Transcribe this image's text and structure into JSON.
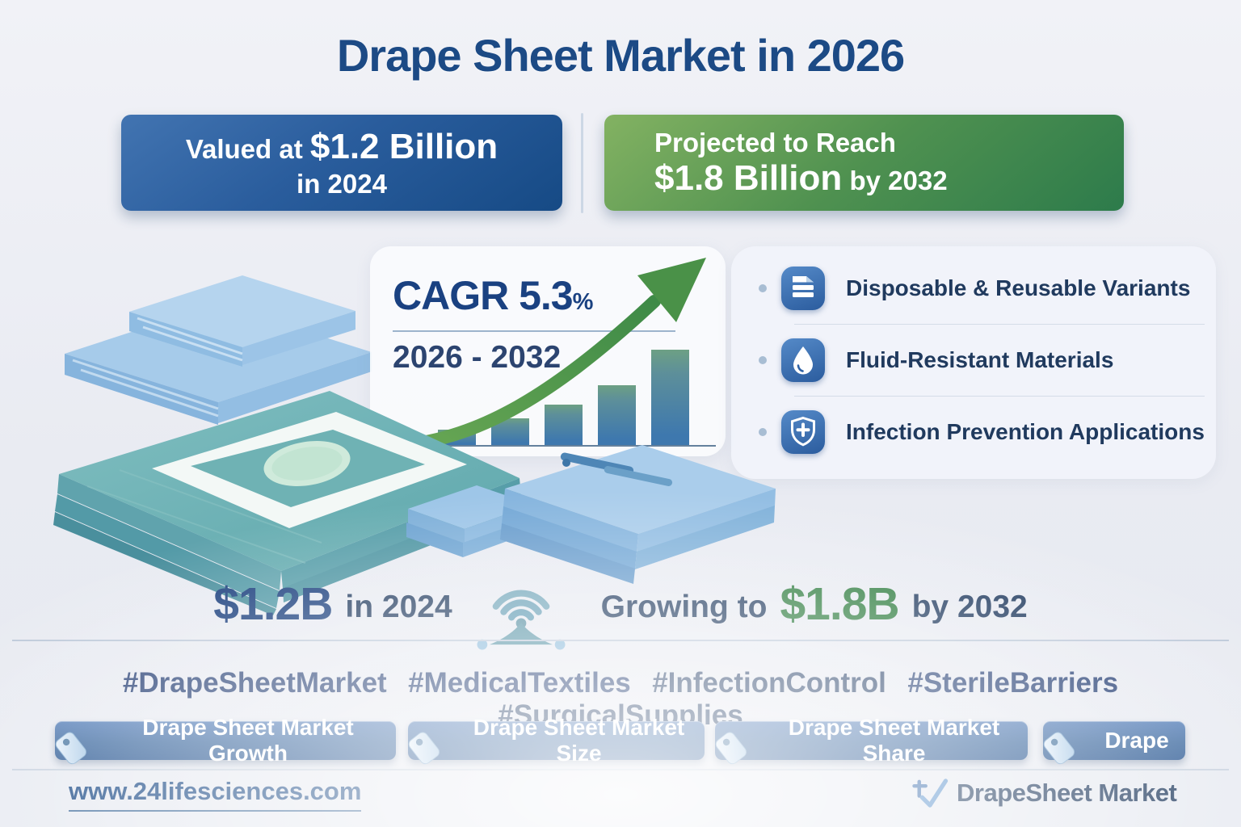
{
  "title": "Drape Sheet Market in 2026",
  "banners": {
    "valuation": {
      "lead": "Valued at ",
      "value": "$1.2 Billion",
      "line2": "in 2024"
    },
    "projection": {
      "line1": "Projected to Reach",
      "value": "$1.8 Billion",
      "tail": " by 2032"
    }
  },
  "cagr": {
    "value": "CAGR 5.3",
    "percent": "%",
    "period": "2026 - 2032"
  },
  "chart_data": {
    "type": "bar",
    "title": "CAGR 5.3%",
    "period": "2026 - 2032",
    "categories": [
      "bar-1",
      "bar-2",
      "bar-3",
      "bar-4",
      "bar-5"
    ],
    "values": [
      16,
      28,
      42,
      63,
      100
    ],
    "value_unit": "relative bar height percent (decorative growth bars, no numeric axis shown)",
    "xlabel": "",
    "ylabel": "",
    "gridlines": false,
    "legend": false,
    "annotation": "green upward curved growth arrow over ascending blue-teal bars"
  },
  "features": {
    "items": [
      {
        "icon": "sheet-stack-icon",
        "label": "Disposable & Reusable Variants"
      },
      {
        "icon": "droplet-icon",
        "label": "Fluid-Resistant Materials"
      },
      {
        "icon": "shield-cross-icon",
        "label": "Infection Prevention Applications"
      }
    ]
  },
  "stats": {
    "current_value": "$1.2B",
    "current_suffix": "in 2024",
    "growing_label": "Growing to",
    "future_value": "$1.8B",
    "future_suffix": "by 2032"
  },
  "hashtags": [
    "#DrapeSheetMarket",
    "#MedicalTextiles",
    "#InfectionControl",
    "#SterileBarriers",
    "#SurgicalSupplies"
  ],
  "tag_buttons": [
    "Drape Sheet Market Growth",
    "Drape Sheet Market Size",
    "Drape Sheet Market Share",
    "Drape"
  ],
  "footer": {
    "website": "www.24lifesciences.com",
    "brand": "DrapeSheet Market"
  },
  "colors": {
    "title_navy": "#1c4a85",
    "banner_blue_start": "#4274b1",
    "banner_blue_end": "#164a85",
    "banner_green_start": "#83b262",
    "banner_green_end": "#2d7b4b",
    "value_green": "#2e7c3f",
    "navy_text": "#203a5e",
    "feature_icon_blue": "#2b5c9e",
    "drape_teal": "#6fb2b4",
    "drape_mint": "#cfeadb",
    "sheet_light_blue": "#a6cbea",
    "arrow_green": "#3e8a47"
  }
}
